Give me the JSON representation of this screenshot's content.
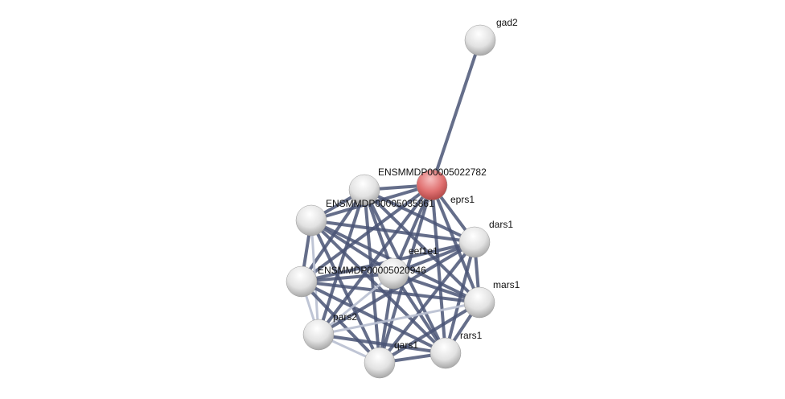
{
  "network": {
    "nodes": [
      {
        "id": "gad2",
        "label": "gad2",
        "highlight": false
      },
      {
        "id": "eprs1",
        "label": "eprs1",
        "highlight": true
      },
      {
        "id": "n22782",
        "label": "ENSMMDP00005022782",
        "highlight": false
      },
      {
        "id": "n35861",
        "label": "ENSMMDP00005035861",
        "highlight": false
      },
      {
        "id": "dars1",
        "label": "dars1",
        "highlight": false
      },
      {
        "id": "n0946",
        "label": "ENSMMDP00005020946",
        "highlight": false
      },
      {
        "id": "eef1e1",
        "label": "eef1e1",
        "highlight": false
      },
      {
        "id": "mars1",
        "label": "mars1",
        "highlight": false
      },
      {
        "id": "pars2",
        "label": "pars2",
        "highlight": false
      },
      {
        "id": "qars1",
        "label": "qars1",
        "highlight": false
      },
      {
        "id": "rars1",
        "label": "rars1",
        "highlight": false
      }
    ],
    "colors": {
      "edge": "#4a5575",
      "edge_light": "#b8bfd0",
      "node": "#e8e8e8",
      "node_highlight": "#e07070"
    }
  }
}
